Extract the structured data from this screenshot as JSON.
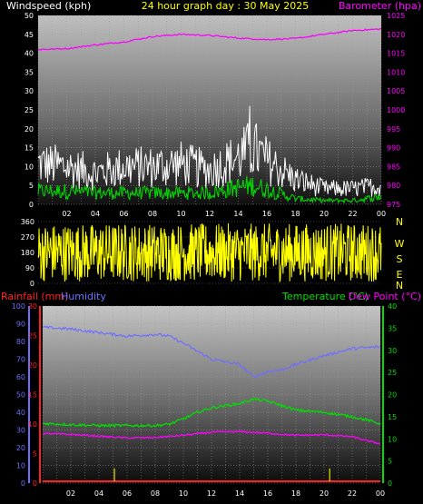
{
  "header": {
    "windspeed_label": "Windspeed (kph)",
    "title": "24 hour graph day : 30 May 2025",
    "barometer_label": "Barometer (hpa)"
  },
  "footer": {
    "rainfall_label": "Rainfall (mm)",
    "humidity_label": "Humidity",
    "temperature_label": "Temperature (°C)",
    "dewpoint_label": "Dew Point (°C)"
  },
  "colors": {
    "background": "#000000",
    "windspeed": "#ffffff",
    "barometer": "#ff00ff",
    "gust": "#ffffff",
    "average_wind": "#00dd00",
    "direction": "#ffff00",
    "rainfall": "#ff2020",
    "humidity": "#6f6fff",
    "temperature": "#00dd00",
    "dewpoint": "#ff00ff"
  },
  "chart_data": [
    {
      "type": "line",
      "name": "wind-barometer",
      "x_ticks": [
        "02",
        "04",
        "06",
        "08",
        "10",
        "12",
        "14",
        "16",
        "18",
        "20",
        "22",
        "00"
      ],
      "left_axis": {
        "label": "Windspeed (kph)",
        "ticks": [
          0,
          5,
          10,
          15,
          20,
          25,
          30,
          35,
          40,
          45,
          50
        ],
        "range": [
          0,
          50
        ]
      },
      "right_axis": {
        "label": "Barometer (hpa)",
        "ticks": [
          975,
          980,
          985,
          990,
          995,
          1000,
          1005,
          1010,
          1015,
          1020,
          1025
        ],
        "range": [
          975,
          1025
        ]
      },
      "barometer": {
        "hours": [
          0,
          2,
          4,
          6,
          8,
          10,
          12,
          14,
          15,
          16,
          18,
          20,
          22,
          24
        ],
        "values": [
          1016.0,
          1016.2,
          1017.2,
          1018.0,
          1019.4,
          1020.0,
          1019.7,
          1019.0,
          1018.8,
          1018.6,
          1018.9,
          1020.0,
          1021.0,
          1021.4
        ]
      },
      "gust_profile": {
        "hours": [
          0,
          2,
          4,
          6,
          8,
          10,
          12,
          14,
          15,
          16,
          18,
          20,
          22,
          24
        ],
        "values": [
          13,
          12,
          10,
          12,
          12,
          13,
          11,
          15,
          18,
          14,
          8,
          5,
          5,
          6
        ]
      },
      "average_profile": {
        "hours": [
          0,
          2,
          4,
          6,
          8,
          10,
          12,
          14,
          15,
          16,
          18,
          20,
          22,
          24
        ],
        "values": [
          3.5,
          3.5,
          3,
          3,
          3,
          3,
          3,
          4.5,
          5,
          4,
          1.5,
          1,
          1,
          2
        ]
      },
      "gust_max": 26
    },
    {
      "type": "line",
      "name": "wind-direction",
      "left_axis": {
        "ticks": [
          0,
          90,
          180,
          270,
          360
        ],
        "range": [
          0,
          360
        ]
      },
      "compass_labels": [
        "N",
        "W",
        "S",
        "E",
        "N"
      ],
      "direction_range": [
        0,
        360
      ]
    },
    {
      "type": "line",
      "name": "temp-humidity-rain",
      "x_ticks": [
        "02",
        "04",
        "06",
        "08",
        "10",
        "12",
        "14",
        "16",
        "18",
        "20",
        "22",
        "00"
      ],
      "humidity_axis": {
        "ticks": [
          0,
          10,
          20,
          30,
          40,
          50,
          60,
          70,
          80,
          90,
          100
        ],
        "range": [
          0,
          100
        ]
      },
      "rainfall_axis": {
        "ticks": [
          0,
          5,
          10,
          15,
          20,
          25,
          30
        ],
        "range": [
          0,
          30
        ]
      },
      "temperature_axis": {
        "ticks": [
          0,
          5,
          10,
          15,
          20,
          25,
          30,
          35,
          40
        ],
        "range": [
          0,
          40
        ]
      },
      "humidity": {
        "hours": [
          0,
          2,
          4,
          6,
          8,
          9,
          10,
          12,
          14,
          15,
          16,
          17,
          18,
          20,
          22,
          24
        ],
        "values": [
          88,
          87,
          85,
          83,
          84,
          83,
          79,
          70,
          67,
          60,
          63,
          64,
          67,
          72,
          76,
          77
        ]
      },
      "temperature": {
        "hours": [
          0,
          2,
          4,
          6,
          8,
          9,
          10,
          11,
          12,
          14,
          15,
          16,
          17,
          18,
          20,
          22,
          23,
          24
        ],
        "values": [
          13.5,
          13.2,
          13.0,
          13.0,
          13.0,
          13.3,
          14.5,
          16.0,
          17.0,
          18.0,
          19.0,
          18.5,
          17.5,
          16.5,
          16.0,
          15.0,
          14.3,
          13.4
        ]
      },
      "dewpoint": {
        "hours": [
          0,
          2,
          4,
          6,
          8,
          10,
          12,
          14,
          16,
          17,
          18,
          20,
          22,
          23,
          24
        ],
        "values": [
          11.2,
          11.0,
          10.6,
          10.2,
          10.3,
          10.8,
          11.5,
          11.6,
          11.3,
          11.0,
          10.8,
          10.9,
          10.5,
          9.6,
          8.9
        ]
      },
      "rain_marks_hours": [
        5.1,
        20.4
      ],
      "rain_marks_values": [
        2.5,
        2.5
      ]
    }
  ]
}
